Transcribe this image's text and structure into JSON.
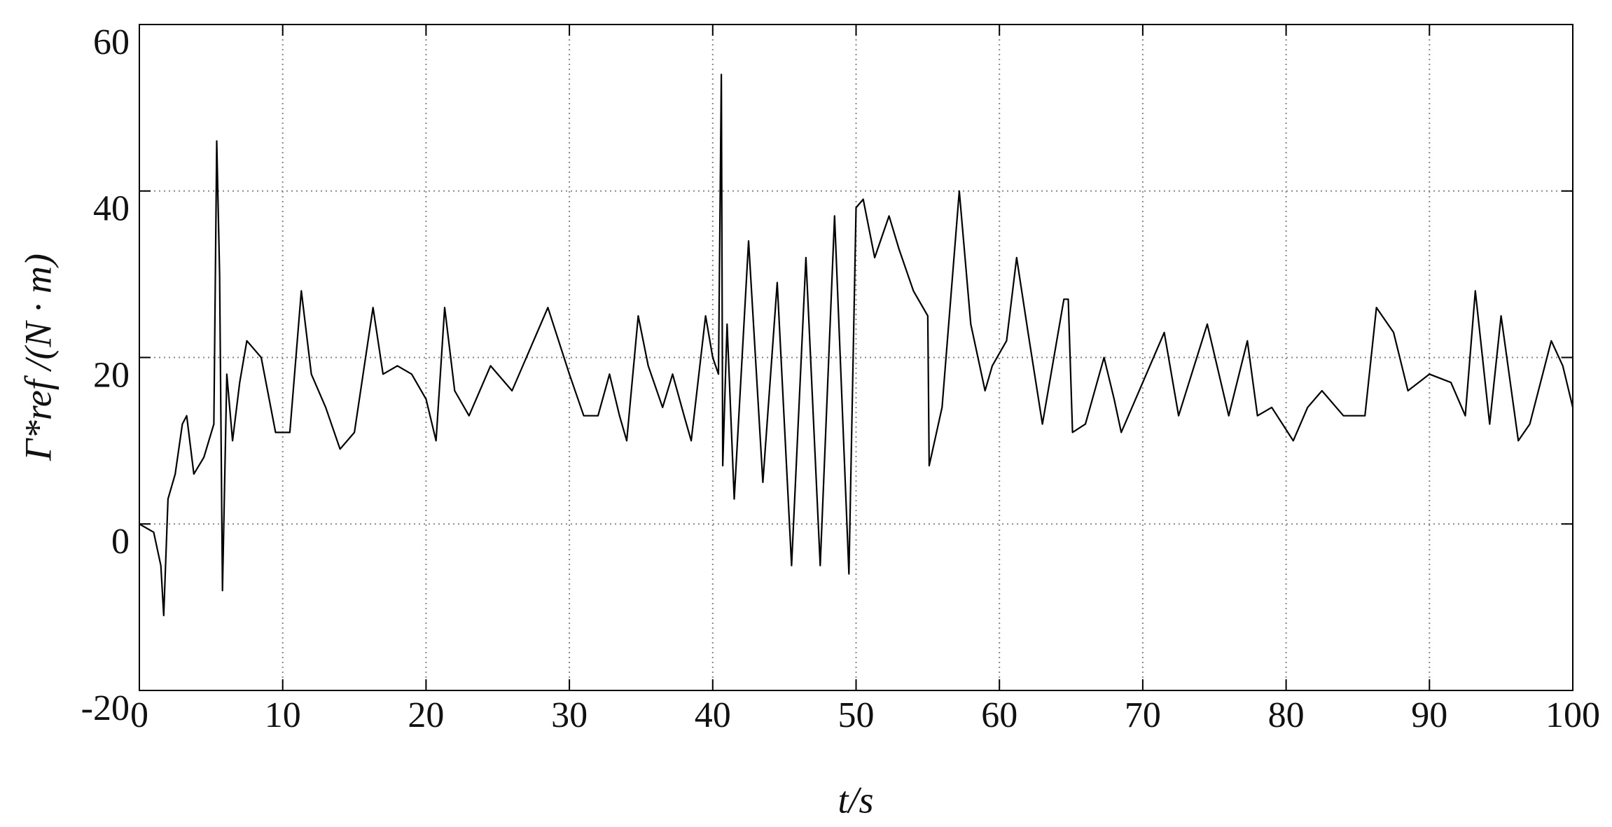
{
  "chart_data": {
    "type": "line",
    "xlabel": "t/s",
    "ylabel": "Γ*ref /(N · m)",
    "xlim": [
      0,
      100
    ],
    "ylim": [
      -20,
      60
    ],
    "xticks": [
      0,
      10,
      20,
      30,
      40,
      50,
      60,
      70,
      80,
      90,
      100
    ],
    "yticks": [
      -20,
      0,
      20,
      40,
      60
    ],
    "grid": true,
    "series": [
      {
        "color": "#000000",
        "x": [
          0,
          1,
          1.5,
          1.7,
          2,
          2.5,
          3,
          3.3,
          3.8,
          4.5,
          5.2,
          5.4,
          5.6,
          5.8,
          6.1,
          6.5,
          7,
          7.5,
          8.5,
          9.5,
          10.5,
          11.3,
          12,
          13,
          14,
          15,
          16.3,
          17,
          18,
          19,
          20,
          20.7,
          21.3,
          22,
          23,
          24.5,
          26,
          27,
          28.5,
          30,
          31,
          32,
          32.8,
          33.5,
          34,
          34.8,
          35.5,
          36.5,
          37.2,
          38,
          38.5,
          39.5,
          40,
          40.4,
          40.6,
          40.7,
          41,
          41.5,
          42.5,
          43.5,
          44.5,
          45.5,
          46.5,
          47.5,
          48.5,
          49.5,
          50,
          50.5,
          51.3,
          52.3,
          53,
          54,
          55,
          55.1,
          56,
          57.2,
          58,
          59,
          59.5,
          60.5,
          61.2,
          62,
          63,
          64.5,
          64.8,
          65.1,
          66,
          67.3,
          68,
          68.5,
          70,
          71.5,
          72.5,
          74.5,
          76,
          77.3,
          78,
          79,
          80.5,
          81.5,
          82.5,
          84,
          85.5,
          86.3,
          87.5,
          88.5,
          90,
          91.5,
          92.5,
          93.2,
          94.2,
          95,
          96.2,
          97,
          98.5,
          99.3,
          100
        ],
        "values": [
          0,
          -1,
          -5,
          -11,
          3,
          6,
          12,
          13,
          6,
          8,
          12,
          46,
          30,
          -8,
          18,
          10,
          17,
          22,
          20,
          11,
          11,
          28,
          18,
          14,
          9,
          11,
          26,
          18,
          19,
          18,
          15,
          10,
          26,
          16,
          13,
          19,
          16,
          20,
          26,
          18,
          13,
          13,
          18,
          13,
          10,
          25,
          19,
          14,
          18,
          13,
          10,
          25,
          20,
          18,
          54,
          7,
          24,
          3,
          34,
          5,
          29,
          -5,
          32,
          -5,
          37,
          -6,
          38,
          39,
          32,
          37,
          33,
          28,
          25,
          7,
          14,
          40,
          24,
          16,
          19,
          22,
          32,
          23,
          12,
          27,
          27,
          11,
          12,
          20,
          15,
          11,
          17,
          23,
          13,
          24,
          13,
          22,
          13,
          14,
          10,
          14,
          16,
          13,
          13,
          26,
          23,
          16,
          18,
          17,
          13,
          28,
          12,
          25,
          10,
          12,
          22,
          19,
          14
        ]
      }
    ]
  }
}
